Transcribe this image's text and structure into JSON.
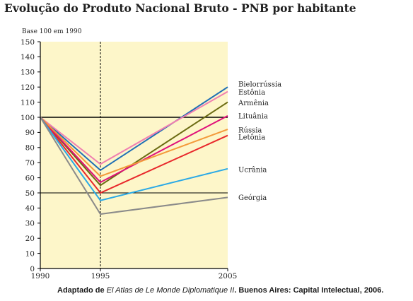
{
  "title": "Evolução do Produto Nacional Bruto - PNB por habitante",
  "source": {
    "prefix": "Adaptado de ",
    "work": "El Atlas de Le Monde Diplomatique II",
    "suffix": ". Buenos Aires: Capital Intelectual, 2006."
  },
  "colors": {
    "plot_background": "#fdf6c9",
    "axis": "#000000",
    "dashed_line": "#000000"
  },
  "chart_data": {
    "type": "line",
    "ylabel": "Base 100 em 1990",
    "x": [
      "1990",
      "1995",
      "2005"
    ],
    "ylim": [
      0,
      150
    ],
    "yticks": [
      0,
      10,
      20,
      30,
      40,
      50,
      60,
      70,
      80,
      90,
      100,
      110,
      120,
      130,
      140,
      150
    ],
    "reference_lines": [
      100,
      50
    ],
    "dashed_vertical_at": "1995",
    "grid": false,
    "series": [
      {
        "name": "Bielorrússia",
        "values": [
          100,
          65,
          120
        ],
        "color": "#1f6fb5"
      },
      {
        "name": "Estônia",
        "values": [
          100,
          69,
          117
        ],
        "color": "#f07fb0"
      },
      {
        "name": "Armênia",
        "values": [
          100,
          55,
          110
        ],
        "color": "#6b6b12"
      },
      {
        "name": "Lituânia",
        "values": [
          100,
          57,
          101
        ],
        "color": "#e0107a"
      },
      {
        "name": "Rússia",
        "values": [
          100,
          61,
          92
        ],
        "color": "#f39a3a"
      },
      {
        "name": "Letônia",
        "values": [
          100,
          50,
          88
        ],
        "color": "#e8272b"
      },
      {
        "name": "Ucrânia",
        "values": [
          100,
          45,
          66
        ],
        "color": "#2aa9e6"
      },
      {
        "name": "Geórgia",
        "values": [
          100,
          36,
          47
        ],
        "color": "#8a8a8a"
      }
    ],
    "label_positions": [
      {
        "name": "Bielorrússia",
        "y": 122
      },
      {
        "name": "Estônia",
        "y": 116.5
      },
      {
        "name": "Armênia",
        "y": 109.5
      },
      {
        "name": "Lituânia",
        "y": 101
      },
      {
        "name": "Rússia",
        "y": 91.5
      },
      {
        "name": "Letônia",
        "y": 87
      },
      {
        "name": "Ucrânia",
        "y": 65.5
      },
      {
        "name": "Geórgia",
        "y": 47
      }
    ]
  }
}
